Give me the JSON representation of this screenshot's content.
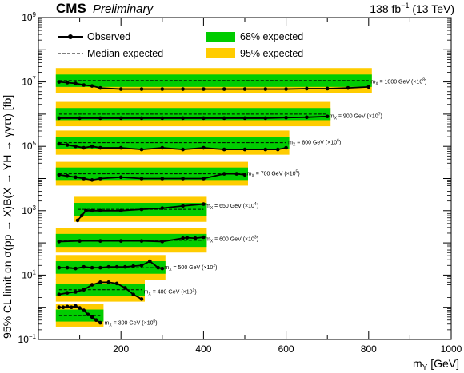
{
  "header": {
    "experiment": "CMS",
    "status": "Preliminary",
    "lumi_value": "138 fb",
    "lumi_exp": "−1",
    "lumi_energy": " (13 TeV)"
  },
  "colors": {
    "band68": "#00cc00",
    "band95": "#ffcc00",
    "observed": "#000000",
    "median": "#000000"
  },
  "legend": {
    "observed": "Observed",
    "median": "Median expected",
    "band68": "68% expected",
    "band95": "95% expected",
    "placement": "top"
  },
  "chart_data": {
    "type": "line",
    "xlabel_main": "m",
    "xlabel_sub": "Y",
    "xlabel_unit": " [GeV]",
    "ylabel": "95% CL limit on σ(pp → X)B(X → YH → γγττ) [fb]",
    "xlim": [
      0,
      1000
    ],
    "ylim": [
      0.1,
      1000000000
    ],
    "yscale": "log",
    "xticks": [
      200,
      400,
      600,
      800,
      1000
    ],
    "yticks": [
      {
        "value": 0.1,
        "base": "10",
        "exp": "−1"
      },
      {
        "value": 10,
        "base": "10",
        "exp": "1"
      },
      {
        "value": 1000,
        "base": "10",
        "exp": "3"
      },
      {
        "value": 100000,
        "base": "10",
        "exp": "5"
      },
      {
        "value": 10000000,
        "base": "10",
        "exp": "7"
      },
      {
        "value": 1000000000,
        "base": "10",
        "exp": "9"
      }
    ],
    "series": [
      {
        "mX": "300",
        "scale": "0",
        "label_x": 160,
        "label_y": 0.32,
        "x": [
          50,
          60,
          70,
          80,
          90,
          100,
          110,
          120,
          130,
          140,
          150
        ],
        "observed": [
          1.0,
          1.0,
          1.05,
          1.0,
          1.1,
          0.95,
          0.8,
          0.6,
          0.5,
          0.4,
          0.33
        ],
        "median": [
          0.55,
          0.55,
          0.55,
          0.55,
          0.55,
          0.55,
          0.55,
          0.55,
          0.55,
          0.55,
          0.55
        ],
        "band68": [
          0.36,
          0.85
        ],
        "band95": [
          0.25,
          1.25
        ]
      },
      {
        "mX": "400",
        "scale": "1",
        "label_x": 255,
        "label_y": 3.0,
        "x": [
          50,
          70,
          90,
          110,
          130,
          150,
          170,
          190,
          210,
          230,
          250
        ],
        "observed": [
          2.5,
          2.8,
          3.0,
          3.5,
          5.0,
          6.0,
          6.0,
          5.5,
          4.0,
          2.5,
          1.8
        ],
        "median": [
          3.5,
          3.5,
          3.5,
          3.5,
          3.5,
          3.5,
          3.5,
          3.5,
          3.5,
          3.5,
          3.5
        ],
        "band68": [
          2.3,
          5.3
        ],
        "band95": [
          1.5,
          7.8
        ]
      },
      {
        "mX": "500",
        "scale": "2",
        "label_x": 305,
        "label_y": 17,
        "x": [
          50,
          70,
          90,
          110,
          130,
          150,
          170,
          190,
          210,
          230,
          250,
          270,
          290,
          300
        ],
        "observed": [
          17,
          17,
          16,
          18,
          17,
          17,
          18,
          18,
          18,
          19,
          20,
          27,
          17,
          16
        ],
        "median": [
          17,
          17,
          17,
          17,
          17,
          17,
          17,
          17,
          17,
          17,
          17,
          17,
          17,
          17
        ],
        "band68": [
          11,
          27
        ],
        "band95": [
          7,
          42
        ]
      },
      {
        "mX": "600",
        "scale": "3",
        "label_x": 405,
        "label_y": 130,
        "x": [
          50,
          100,
          150,
          200,
          250,
          300,
          350,
          360,
          380,
          400
        ],
        "observed": [
          110,
          115,
          115,
          115,
          115,
          110,
          140,
          145,
          140,
          150
        ],
        "median": [
          120,
          120,
          120,
          120,
          120,
          120,
          120,
          120,
          120,
          120
        ],
        "band68": [
          75,
          190
        ],
        "band95": [
          50,
          290
        ]
      },
      {
        "mX": "650",
        "scale": "4",
        "label_x": 405,
        "label_y": 1400,
        "x": [
          95,
          105,
          115,
          130,
          150,
          200,
          250,
          300,
          350,
          400
        ],
        "observed": [
          500,
          700,
          1000,
          1000,
          1000,
          1000,
          1100,
          1200,
          1400,
          1600
        ],
        "median": [
          1100,
          1100,
          1100,
          1100,
          1100,
          1100,
          1100,
          1100,
          1100,
          1100
        ],
        "band68": [
          700,
          1750
        ],
        "band95": [
          450,
          2700
        ]
      },
      {
        "mX": "700",
        "scale": "5",
        "label_x": 505,
        "label_y": 14000,
        "x": [
          50,
          70,
          90,
          110,
          130,
          150,
          200,
          250,
          300,
          350,
          400,
          450,
          480,
          500
        ],
        "observed": [
          13000,
          12000,
          11000,
          10000,
          9000,
          10000,
          11000,
          10000,
          10000,
          10000,
          10000,
          14000,
          14000,
          13000
        ],
        "median": [
          14000,
          14000,
          14000,
          14000,
          14000,
          14000,
          14000,
          14000,
          14000,
          14000,
          14000,
          14000,
          14000,
          14000
        ],
        "band68": [
          9000,
          22000
        ],
        "band95": [
          6000,
          33000
        ]
      },
      {
        "mX": "800",
        "scale": "6",
        "label_x": 605,
        "label_y": 130000,
        "x": [
          50,
          70,
          90,
          110,
          130,
          150,
          200,
          250,
          300,
          350,
          400,
          450,
          500,
          550,
          580,
          600
        ],
        "observed": [
          120000,
          110000,
          100000,
          90000,
          100000,
          90000,
          90000,
          80000,
          90000,
          80000,
          90000,
          80000,
          80000,
          80000,
          80000,
          90000
        ],
        "median": [
          130000,
          130000,
          130000,
          130000,
          130000,
          130000,
          130000,
          130000,
          130000,
          130000,
          130000,
          130000,
          130000,
          130000,
          130000,
          130000
        ],
        "band68": [
          85000,
          200000
        ],
        "band95": [
          55000,
          310000
        ]
      },
      {
        "mX": "900",
        "scale": "7",
        "label_x": 705,
        "label_y": 850000,
        "x": [
          50,
          100,
          150,
          200,
          250,
          300,
          350,
          400,
          450,
          500,
          550,
          600,
          650,
          700
        ],
        "observed": [
          750000,
          750000,
          750000,
          750000,
          750000,
          750000,
          750000,
          750000,
          750000,
          750000,
          750000,
          780000,
          800000,
          850000
        ],
        "median": [
          1000000,
          1000000,
          1000000,
          1000000,
          1000000,
          1000000,
          1000000,
          1000000,
          1000000,
          1000000,
          1000000,
          1000000,
          1000000,
          1000000
        ],
        "band68": [
          650000,
          1550000
        ],
        "band95": [
          420000,
          2400000
        ]
      },
      {
        "mX": "1000",
        "scale": "8",
        "label_x": 805,
        "label_y": 10000000,
        "x": [
          50,
          70,
          90,
          110,
          130,
          150,
          200,
          250,
          300,
          350,
          400,
          450,
          500,
          550,
          600,
          650,
          700,
          750,
          800
        ],
        "observed": [
          10000000,
          9500000,
          9000000,
          8000000,
          7500000,
          6500000,
          6000000,
          6000000,
          6000000,
          6000000,
          6000000,
          6000000,
          6000000,
          6000000,
          6000000,
          6200000,
          6200000,
          6500000,
          7000000
        ],
        "median": [
          11000000,
          11000000,
          11000000,
          11000000,
          11000000,
          11000000,
          11000000,
          11000000,
          11000000,
          11000000,
          11000000,
          11000000,
          11000000,
          11000000,
          11000000,
          11000000,
          11000000,
          11000000,
          11000000
        ],
        "band68": [
          7000000,
          17000000
        ],
        "band95": [
          4500000,
          27000000
        ]
      }
    ]
  }
}
